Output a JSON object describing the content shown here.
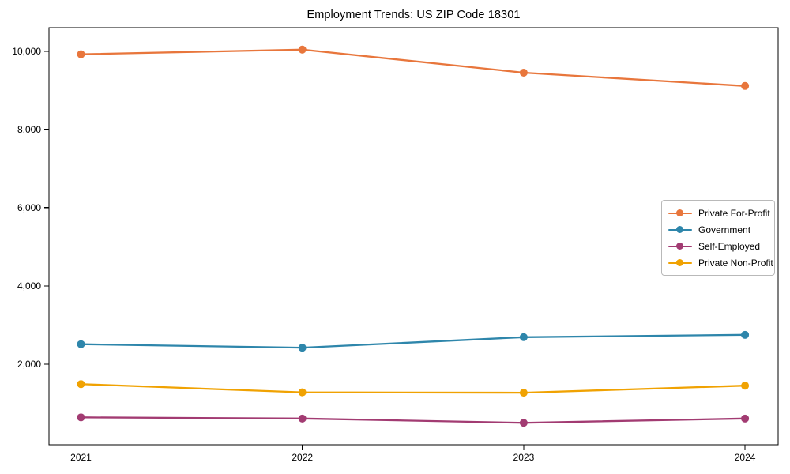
{
  "chart_data": {
    "type": "line",
    "title": "Employment Trends: US ZIP Code 18301",
    "xlabel": "",
    "ylabel": "",
    "x": [
      "2021",
      "2022",
      "2023",
      "2024"
    ],
    "series": [
      {
        "name": "Private For-Profit",
        "color": "#E8763C",
        "values": [
          9920,
          10040,
          9450,
          9110
        ]
      },
      {
        "name": "Government",
        "color": "#2E86AB",
        "values": [
          2510,
          2420,
          2690,
          2750
        ]
      },
      {
        "name": "Self-Employed",
        "color": "#A23B72",
        "values": [
          640,
          610,
          500,
          610
        ]
      },
      {
        "name": "Private Non-Profit",
        "color": "#F0A202",
        "values": [
          1490,
          1280,
          1270,
          1450
        ]
      }
    ],
    "yticks": [
      2000,
      4000,
      6000,
      8000,
      10000
    ],
    "ytick_labels": [
      "2,000",
      "4,000",
      "6,000",
      "8,000",
      "10,000"
    ],
    "ylim": [
      -60,
      10600
    ],
    "grid": false,
    "legend_position": "middle-right",
    "axis_color": "#000000",
    "text_color": "#000000",
    "background": "#ffffff"
  }
}
